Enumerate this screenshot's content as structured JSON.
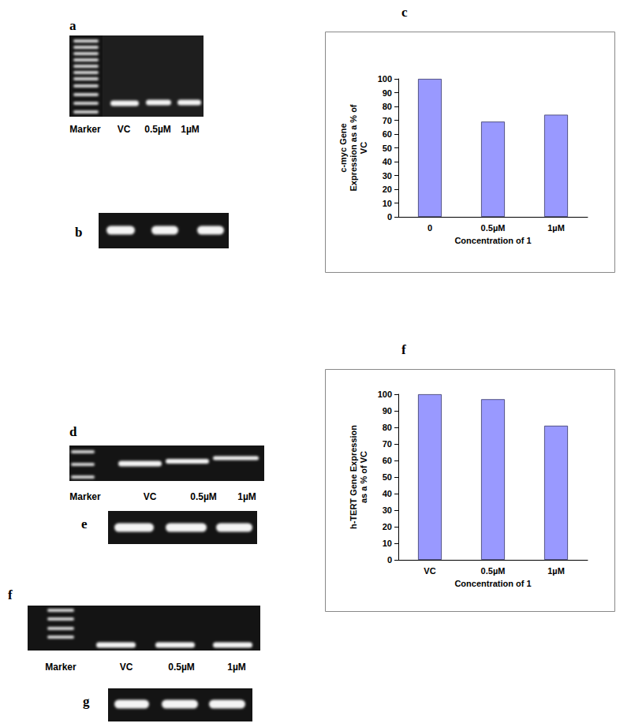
{
  "chart_data": [
    {
      "type": "bar",
      "title": "c",
      "categories": [
        "0",
        "0.5µM",
        "1µM"
      ],
      "values": [
        100,
        69,
        74
      ],
      "xlabel": "Concentration of 1",
      "ylabel": "c-myc Gene\nExpression as a % of\nVC",
      "ylim": [
        0,
        100
      ],
      "yticks": [
        0,
        10,
        20,
        30,
        40,
        50,
        60,
        70,
        80,
        90,
        100
      ],
      "color": "#9999ff",
      "grid": false
    },
    {
      "type": "bar",
      "title": "f",
      "categories": [
        "VC",
        "0.5µM",
        "1µM"
      ],
      "values": [
        100,
        97,
        81
      ],
      "xlabel": "Concentration of 1",
      "ylabel": "h-TERT Gene Expression\nas a % of VC",
      "ylim": [
        0,
        100
      ],
      "yticks": [
        0,
        10,
        20,
        30,
        40,
        50,
        60,
        70,
        80,
        90,
        100
      ],
      "color": "#9999ff",
      "grid": false
    }
  ],
  "gels": [
    {
      "label": "a",
      "lanes": [
        "Marker",
        "VC",
        "0.5µM",
        "1µM"
      ]
    },
    {
      "label": "b"
    },
    {
      "label": "d",
      "lanes": [
        "Marker",
        "VC",
        "0.5µM",
        "1µM"
      ]
    },
    {
      "label": "e"
    },
    {
      "label": "f",
      "lanes": [
        "Marker",
        "VC",
        "0.5µM",
        "1µM"
      ]
    },
    {
      "label": "g"
    }
  ]
}
